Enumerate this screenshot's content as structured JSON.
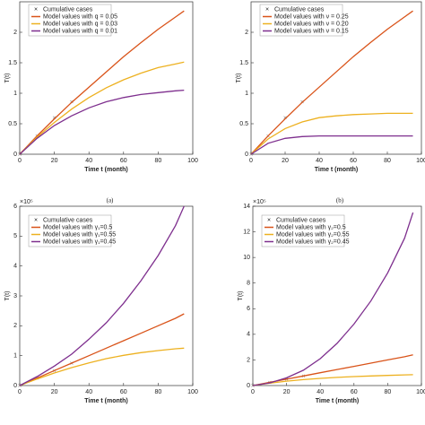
{
  "chart_data": [
    {
      "type": "line",
      "panel_label": "(a)",
      "xlabel": "Time t (month)",
      "ylabel": "T(t)",
      "x": [
        0,
        10,
        20,
        30,
        40,
        50,
        60,
        70,
        80,
        90,
        95
      ],
      "xlim": [
        0,
        100
      ],
      "xticks": [
        0,
        20,
        40,
        60,
        80,
        100
      ],
      "ylim": [
        0,
        2.5
      ],
      "yticks": [
        0,
        0.5,
        1,
        1.5,
        2
      ],
      "series": [
        {
          "name": "Cumulative cases",
          "color": "#888888",
          "style": "marker",
          "values": [
            0,
            0.3,
            0.6,
            0.86,
            null,
            null,
            null,
            null,
            null,
            null,
            null
          ]
        },
        {
          "name": "Model values with q = 0.05",
          "color": "#d95319",
          "values": [
            0,
            0.3,
            0.58,
            0.85,
            1.1,
            1.35,
            1.6,
            1.83,
            2.05,
            2.25,
            2.35
          ]
        },
        {
          "name": "Model values with q = 0.03",
          "color": "#edb120",
          "values": [
            0,
            0.28,
            0.52,
            0.74,
            0.93,
            1.09,
            1.22,
            1.33,
            1.42,
            1.48,
            1.51
          ]
        },
        {
          "name": "Model values with q = 0.01",
          "color": "#7e2f8e",
          "values": [
            0,
            0.26,
            0.47,
            0.63,
            0.76,
            0.86,
            0.93,
            0.98,
            1.01,
            1.04,
            1.05
          ]
        }
      ]
    },
    {
      "type": "line",
      "panel_label": "(b)",
      "xlabel": "Time t (month)",
      "ylabel": "T(t)",
      "x": [
        0,
        10,
        20,
        30,
        40,
        50,
        60,
        70,
        80,
        90,
        95
      ],
      "xlim": [
        0,
        100
      ],
      "xticks": [
        0,
        20,
        40,
        60,
        80,
        100
      ],
      "ylim": [
        0,
        2.5
      ],
      "yticks": [
        0,
        0.5,
        1,
        1.5,
        2
      ],
      "series": [
        {
          "name": "Cumulative cases",
          "color": "#888888",
          "style": "marker",
          "values": [
            0,
            0.3,
            0.6,
            0.86,
            null,
            null,
            null,
            null,
            null,
            null,
            null
          ]
        },
        {
          "name": "Model values with ν = 0.25",
          "color": "#d95319",
          "values": [
            0,
            0.3,
            0.58,
            0.85,
            1.1,
            1.35,
            1.6,
            1.83,
            2.05,
            2.25,
            2.35
          ]
        },
        {
          "name": "Model values with ν = 0.20",
          "color": "#edb120",
          "values": [
            0,
            0.25,
            0.42,
            0.53,
            0.6,
            0.63,
            0.65,
            0.66,
            0.67,
            0.67,
            0.67
          ]
        },
        {
          "name": "Model values with ν = 0.15",
          "color": "#7e2f8e",
          "values": [
            0,
            0.18,
            0.26,
            0.29,
            0.3,
            0.3,
            0.3,
            0.3,
            0.3,
            0.3,
            0.3
          ]
        }
      ]
    },
    {
      "type": "line",
      "exponent": "×10⁵",
      "xlabel": "Time t (month)",
      "ylabel": "T(t)",
      "x": [
        0,
        10,
        20,
        30,
        40,
        50,
        60,
        70,
        80,
        90,
        95
      ],
      "xlim": [
        0,
        100
      ],
      "xticks": [
        0,
        20,
        40,
        60,
        80,
        100
      ],
      "ylim": [
        0,
        6
      ],
      "yticks": [
        0,
        1,
        2,
        3,
        4,
        5,
        6
      ],
      "series": [
        {
          "name": "Cumulative cases",
          "color": "#888888",
          "style": "marker",
          "values": [
            0,
            0.25,
            0.5,
            0.75,
            null,
            null,
            null,
            null,
            null,
            null,
            null
          ]
        },
        {
          "name": "Model values with γ₁=0.5",
          "color": "#d95319",
          "values": [
            0,
            0.25,
            0.5,
            0.75,
            1.0,
            1.25,
            1.5,
            1.75,
            2.0,
            2.25,
            2.4
          ]
        },
        {
          "name": "Model values with γ₁=0.55",
          "color": "#edb120",
          "values": [
            0,
            0.22,
            0.42,
            0.6,
            0.76,
            0.9,
            1.01,
            1.1,
            1.17,
            1.23,
            1.25
          ]
        },
        {
          "name": "Model values with γ₁=0.45",
          "color": "#7e2f8e",
          "values": [
            0,
            0.3,
            0.65,
            1.05,
            1.55,
            2.1,
            2.75,
            3.5,
            4.35,
            5.35,
            6.0
          ]
        }
      ]
    },
    {
      "type": "line",
      "exponent": "×10⁵",
      "xlabel": "Time t (month)",
      "ylabel": "T(t)",
      "x": [
        0,
        10,
        20,
        30,
        40,
        50,
        60,
        70,
        80,
        90,
        95
      ],
      "xlim": [
        0,
        100
      ],
      "xticks": [
        0,
        20,
        40,
        60,
        80,
        100
      ],
      "ylim": [
        0,
        14
      ],
      "yticks": [
        0,
        2,
        4,
        6,
        8,
        10,
        12,
        14
      ],
      "series": [
        {
          "name": "Cumulative cases",
          "color": "#888888",
          "style": "marker",
          "values": [
            0,
            0.25,
            0.5,
            0.75,
            null,
            null,
            null,
            null,
            null,
            null,
            null
          ]
        },
        {
          "name": "Model values with γ₂=0.5",
          "color": "#d95319",
          "values": [
            0,
            0.25,
            0.5,
            0.75,
            1.0,
            1.25,
            1.5,
            1.75,
            2.0,
            2.25,
            2.4
          ]
        },
        {
          "name": "Model values with γ₂=0.55",
          "color": "#edb120",
          "values": [
            0,
            0.18,
            0.34,
            0.46,
            0.56,
            0.64,
            0.7,
            0.75,
            0.79,
            0.83,
            0.85
          ]
        },
        {
          "name": "Model values with γ₂=0.45",
          "color": "#7e2f8e",
          "values": [
            0,
            0.2,
            0.6,
            1.2,
            2.1,
            3.3,
            4.8,
            6.6,
            8.8,
            11.5,
            13.5
          ]
        }
      ]
    }
  ]
}
